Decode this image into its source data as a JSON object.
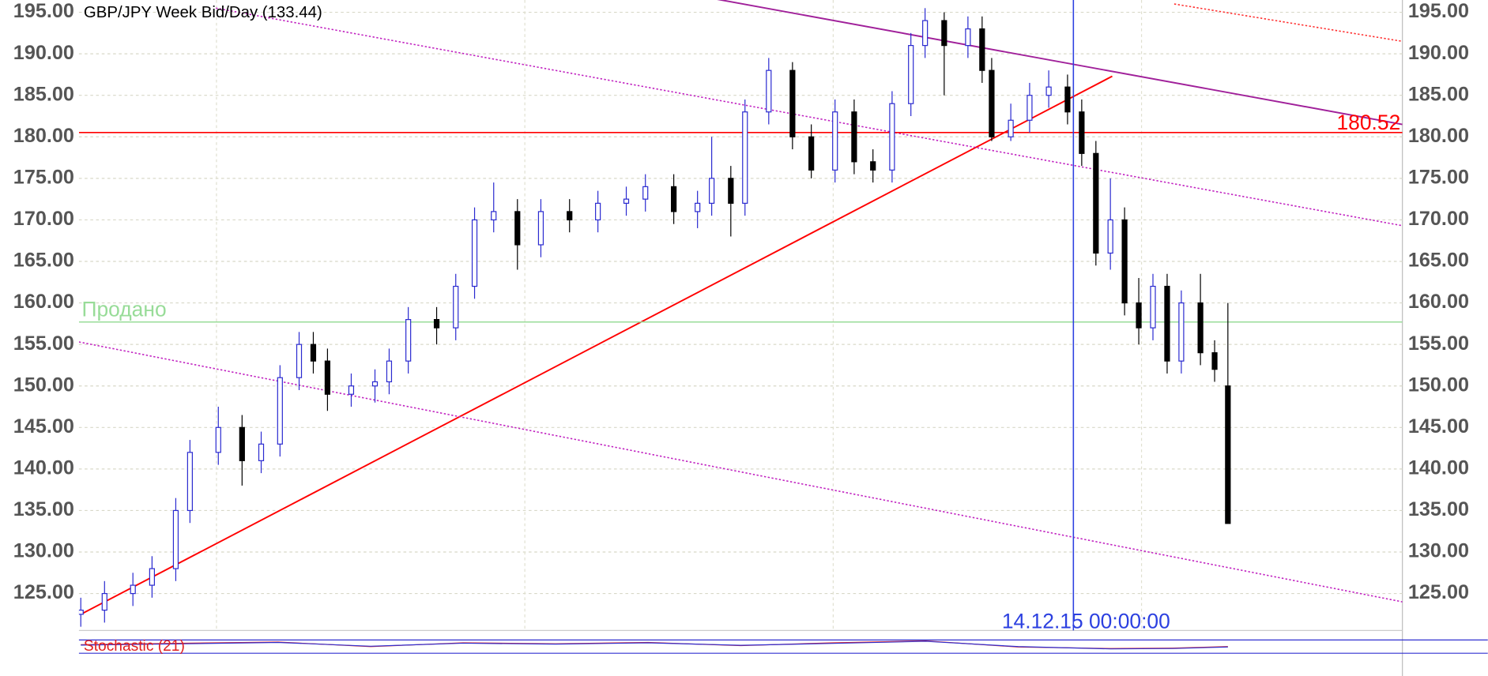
{
  "chart_data": {
    "type": "candlestick",
    "title": "GBP/JPY Week Bid/Day (133.44)",
    "x": [
      2012.56,
      2012.637,
      2012.729,
      2012.791,
      2012.868,
      2012.914,
      2013.006,
      2013.083,
      2013.145,
      2013.206,
      2013.268,
      2013.314,
      2013.36,
      2013.437,
      2013.514,
      2013.56,
      2013.622,
      2013.714,
      2013.776,
      2013.837,
      2013.899,
      2013.976,
      2014.052,
      2014.145,
      2014.237,
      2014.329,
      2014.391,
      2014.483,
      2014.56,
      2014.606,
      2014.668,
      2014.714,
      2014.791,
      2014.868,
      2014.929,
      2015.006,
      2015.068,
      2015.129,
      2015.191,
      2015.252,
      2015.298,
      2015.36,
      2015.437,
      2015.483,
      2015.514,
      2015.576,
      2015.637,
      2015.699,
      2015.76,
      2015.806,
      2015.852,
      2015.899,
      2015.945,
      2015.991,
      2016.037,
      2016.083,
      2016.129,
      2016.191,
      2016.237,
      2016.28
    ],
    "open": [
      122.5,
      123,
      125,
      126,
      128,
      135,
      142,
      145,
      141,
      143,
      151,
      155,
      153,
      149,
      150,
      150.5,
      153,
      158,
      157,
      162,
      170,
      171,
      167,
      171,
      170,
      172,
      172.5,
      174,
      171,
      172,
      175,
      172,
      183,
      188,
      180,
      176,
      183,
      177,
      176,
      184,
      191,
      194,
      191,
      193,
      188,
      180,
      182,
      185,
      186,
      183,
      178,
      166,
      170,
      160,
      157,
      162,
      153,
      160,
      154,
      150
    ],
    "high": [
      124.5,
      126.5,
      127.5,
      129.5,
      136.5,
      143.5,
      147.5,
      146.5,
      144.5,
      152.5,
      156.5,
      156.5,
      154.5,
      151.5,
      152,
      154.5,
      159.5,
      159.5,
      163.5,
      171.5,
      174.5,
      172.5,
      172.5,
      172.5,
      173.5,
      174,
      175.5,
      175.5,
      173.5,
      180,
      176.5,
      184.5,
      189.5,
      189,
      181.5,
      184.5,
      184.5,
      178.5,
      185.5,
      192.5,
      195.5,
      195,
      194.5,
      194.5,
      189.5,
      184,
      186.5,
      188,
      187.5,
      184.5,
      179.5,
      175,
      171.5,
      163,
      163.5,
      163.5,
      161.5,
      163.5,
      155.5,
      160
    ],
    "low": [
      121,
      121.5,
      123.5,
      124.5,
      126.5,
      133.5,
      140.5,
      138,
      139.5,
      141.5,
      149.5,
      151.5,
      147,
      147.5,
      148,
      149,
      151.5,
      155,
      155.5,
      160.5,
      168.5,
      164,
      165.5,
      168.5,
      168.5,
      170.5,
      171,
      169.5,
      169,
      170.5,
      168,
      170.5,
      181.5,
      178.5,
      175,
      174.5,
      175.5,
      174.5,
      174.5,
      182.5,
      189.5,
      185,
      189.5,
      186.5,
      179.5,
      179.5,
      180.5,
      183.5,
      181.5,
      176.5,
      164.5,
      164,
      158.5,
      155,
      155.5,
      151.5,
      151.5,
      152.5,
      150.5,
      133.44
    ],
    "close": [
      123,
      125,
      126,
      128,
      135,
      142,
      145,
      141,
      143,
      151,
      155,
      153,
      149,
      150,
      150.5,
      153,
      158,
      157,
      162,
      170,
      171,
      167,
      171,
      170,
      172,
      172.5,
      174,
      171,
      172,
      175,
      172,
      183,
      188,
      180,
      176,
      183,
      177,
      176,
      184,
      191,
      194,
      191,
      193,
      188,
      180,
      182,
      185,
      186,
      183,
      178,
      166,
      170,
      160,
      157,
      162,
      153,
      160,
      154,
      152,
      133.44
    ],
    "up_color": "#ffffff",
    "up_edge": "#2a2ad0",
    "down_color": "#000000",
    "xlim": [
      2012.554,
      2016.846
    ],
    "xticks": [
      2013,
      2014,
      2015,
      2016,
      2017
    ],
    "ylim": [
      120.55,
      196.48
    ],
    "yticks": [
      {
        "value": 125,
        "label": "125.00"
      },
      {
        "value": 130,
        "label": "130.00"
      },
      {
        "value": 135,
        "label": "135.00"
      },
      {
        "value": 140,
        "label": "140.00"
      },
      {
        "value": 145,
        "label": "145.00"
      },
      {
        "value": 150,
        "label": "150.00"
      },
      {
        "value": 155,
        "label": "155.00"
      },
      {
        "value": 160,
        "label": "160.00"
      },
      {
        "value": 165,
        "label": "165.00"
      },
      {
        "value": 170,
        "label": "170.00"
      },
      {
        "value": 175,
        "label": "175.00"
      },
      {
        "value": 180,
        "label": "180.00"
      },
      {
        "value": 185,
        "label": "185.00"
      },
      {
        "value": 190,
        "label": "190.00"
      },
      {
        "value": 195,
        "label": "195.00"
      }
    ],
    "grid": true,
    "hlines": [
      {
        "value": 180.52,
        "label": "180.52",
        "color": "#ff0000"
      },
      {
        "value": 157.7,
        "label": "Продано",
        "color": "#98dc98"
      }
    ],
    "vline": {
      "x": 2015.779,
      "label": "14.12.15 00:00:00",
      "color": "#2c40e0"
    },
    "lines": [
      {
        "x": [
          2012.56,
          2015.905
        ],
        "y": [
          122.5,
          187.3
        ],
        "color": "#ff0000",
        "dashed": false
      },
      {
        "x": [
          2014.56,
          2016.846
        ],
        "y": [
          197,
          181.5
        ],
        "color": "#a0209a",
        "dashed": false
      },
      {
        "x": [
          2012.998,
          2016.846
        ],
        "y": [
          195.5,
          169.3
        ],
        "color": "#c020c0",
        "dashed": true
      },
      {
        "x": [
          2012.554,
          2016.846
        ],
        "y": [
          155.3,
          124
        ],
        "color": "#c020c0",
        "dashed": true
      },
      {
        "x": [
          2016.106,
          2016.846
        ],
        "y": [
          196,
          191.5
        ],
        "color": "#ff3030",
        "dashed": true
      }
    ],
    "indicator": {
      "label": "Stochastic (21)",
      "ylim": [
        0,
        100
      ],
      "x": [
        2012.56,
        2012.9,
        2013.2,
        2013.5,
        2013.8,
        2014.1,
        2014.4,
        2014.7,
        2015.0,
        2015.3,
        2015.6,
        2015.9,
        2016.1,
        2016.28
      ],
      "series": [
        {
          "color": "#e02020",
          "values": [
            50,
            58,
            64,
            40,
            60,
            55,
            62,
            45,
            60,
            70,
            38,
            30,
            32,
            40
          ]
        },
        {
          "color": "#3030d0",
          "values": [
            48,
            55,
            62,
            42,
            58,
            53,
            60,
            47,
            57,
            68,
            40,
            28,
            30,
            38
          ]
        }
      ]
    }
  }
}
